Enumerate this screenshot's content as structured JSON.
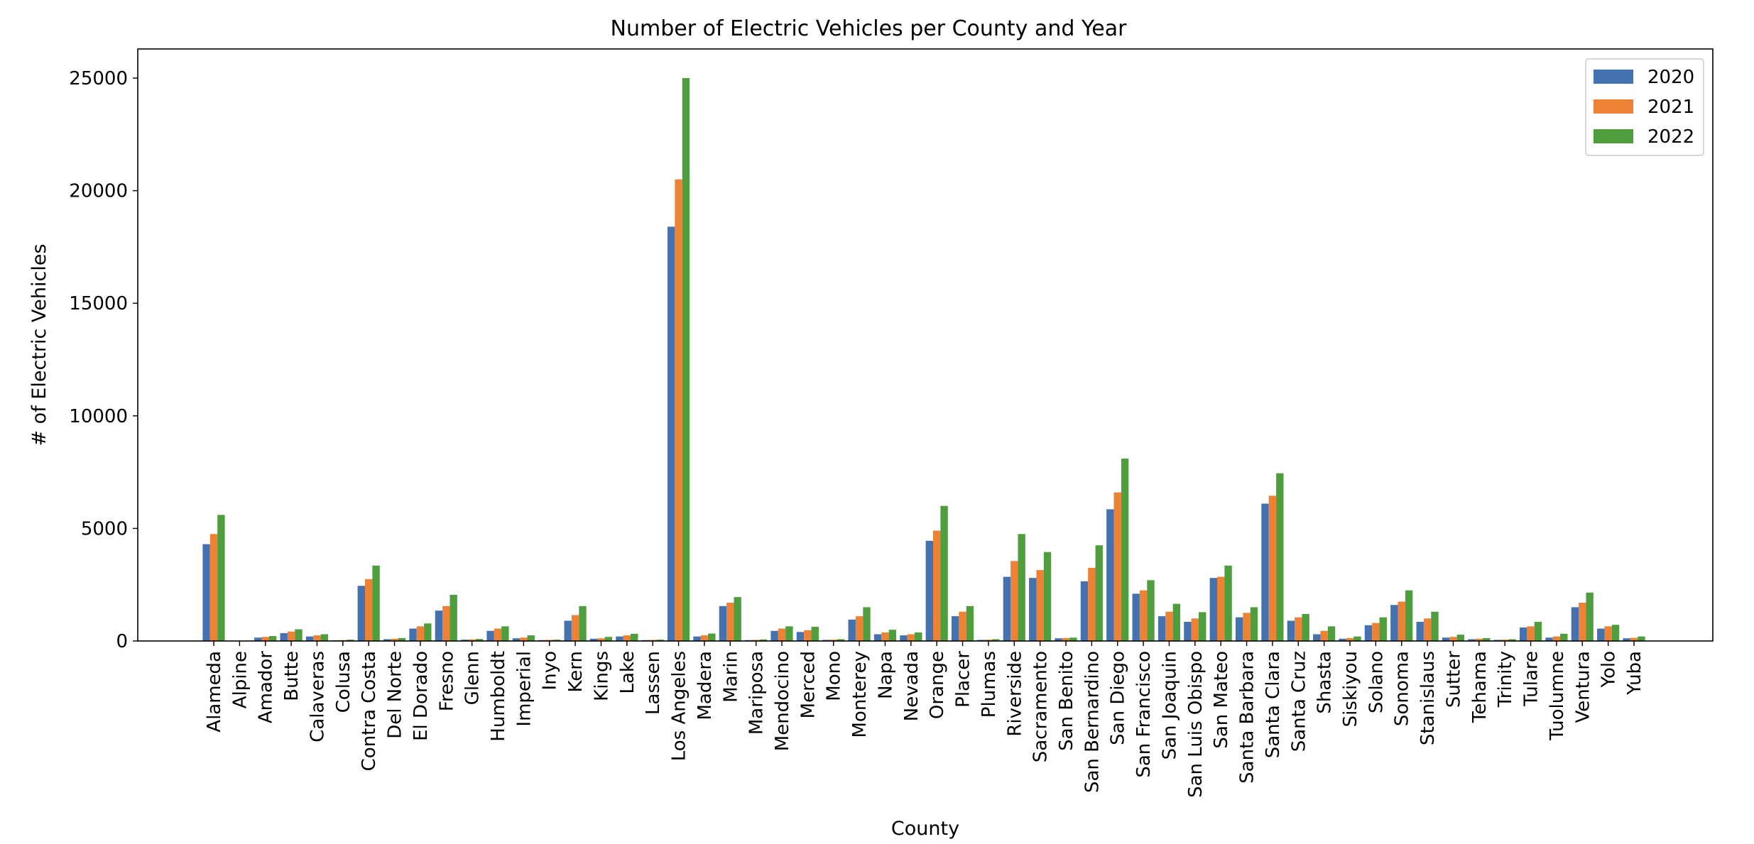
{
  "chart_data": {
    "type": "bar",
    "title": "Number of Electric Vehicles per County and Year",
    "xlabel": "County",
    "ylabel": "# of Electric Vehicles",
    "ylim": [
      0,
      26300
    ],
    "yticks": [
      "0",
      "5000",
      "10000",
      "15000",
      "20000",
      "25000"
    ],
    "ytick_values": [
      0,
      5000,
      10000,
      15000,
      20000,
      25000
    ],
    "grid": false,
    "legend_position": "top-right",
    "categories": [
      "Alameda",
      "Alpine",
      "Amador",
      "Butte",
      "Calaveras",
      "Colusa",
      "Contra Costa",
      "Del Norte",
      "El Dorado",
      "Fresno",
      "Glenn",
      "Humboldt",
      "Imperial",
      "Inyo",
      "Kern",
      "Kings",
      "Lake",
      "Lassen",
      "Los Angeles",
      "Madera",
      "Marin",
      "Mariposa",
      "Mendocino",
      "Merced",
      "Mono",
      "Monterey",
      "Napa",
      "Nevada",
      "Orange",
      "Placer",
      "Plumas",
      "Riverside",
      "Sacramento",
      "San Benito",
      "San Bernardino",
      "San Diego",
      "San Francisco",
      "San Joaquin",
      "San Luis Obispo",
      "San Mateo",
      "Santa Barbara",
      "Santa Clara",
      "Santa Cruz",
      "Shasta",
      "Siskiyou",
      "Solano",
      "Sonoma",
      "Stanislaus",
      "Sutter",
      "Tehama",
      "Trinity",
      "Tulare",
      "Tuolumne",
      "Ventura",
      "Yolo",
      "Yuba"
    ],
    "series": [
      {
        "name": "2020",
        "color": "#4472b0",
        "values": [
          4300,
          5,
          150,
          350,
          200,
          30,
          2450,
          80,
          550,
          1350,
          60,
          450,
          120,
          40,
          900,
          100,
          200,
          40,
          18400,
          200,
          1550,
          40,
          450,
          400,
          50,
          950,
          300,
          250,
          4450,
          1100,
          50,
          2850,
          2800,
          120,
          2650,
          5850,
          2100,
          1100,
          850,
          2800,
          1050,
          6100,
          900,
          300,
          100,
          700,
          1600,
          850,
          150,
          80,
          50,
          600,
          150,
          1500,
          550,
          120
        ]
      },
      {
        "name": "2021",
        "color": "#ed8234",
        "values": [
          4750,
          8,
          180,
          420,
          250,
          40,
          2750,
          100,
          650,
          1550,
          70,
          550,
          150,
          50,
          1150,
          120,
          250,
          50,
          20500,
          250,
          1700,
          50,
          550,
          480,
          60,
          1100,
          380,
          300,
          4900,
          1300,
          60,
          3550,
          3150,
          130,
          3250,
          6600,
          2250,
          1300,
          1000,
          2850,
          1250,
          6450,
          1050,
          450,
          130,
          800,
          1750,
          1000,
          180,
          100,
          60,
          650,
          200,
          1700,
          650,
          140
        ]
      },
      {
        "name": "2022",
        "color": "#4f9e3e",
        "values": [
          5600,
          10,
          220,
          520,
          300,
          60,
          3350,
          130,
          780,
          2050,
          90,
          650,
          250,
          60,
          1550,
          180,
          320,
          60,
          25000,
          330,
          1950,
          70,
          650,
          630,
          80,
          1500,
          500,
          380,
          6000,
          1550,
          80,
          4750,
          3950,
          150,
          4250,
          8100,
          2700,
          1650,
          1280,
          3350,
          1500,
          7450,
          1200,
          650,
          200,
          1050,
          2250,
          1300,
          280,
          130,
          80,
          850,
          320,
          2150,
          720,
          200
        ]
      }
    ]
  }
}
